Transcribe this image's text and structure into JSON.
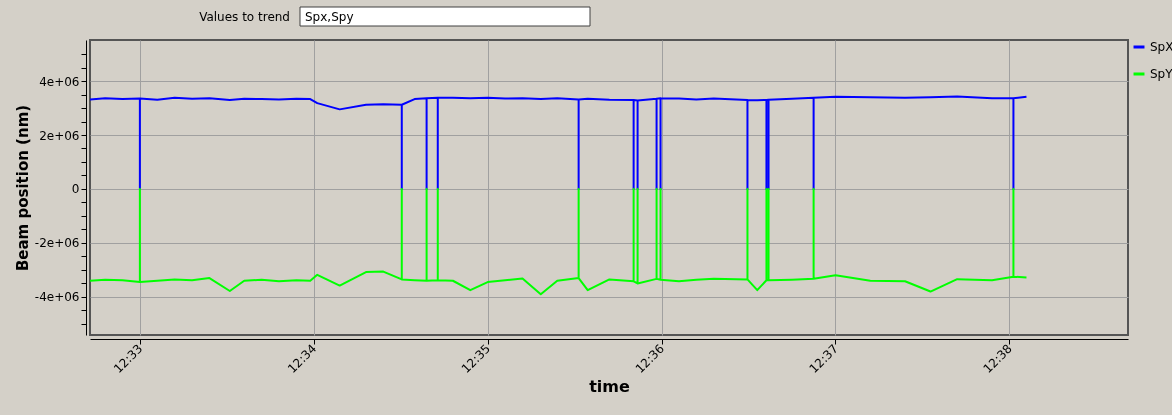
{
  "chart_data": {
    "type": "line",
    "annotations": [
      "Values to trend",
      "Spx,Spy"
    ],
    "xlabel": "time",
    "ylabel": "Beam position (nm)",
    "xlim": [
      12.54522,
      12.6447
    ],
    "ylim": [
      -5410000,
      5520000
    ],
    "xticks": [
      {
        "value": 12.55,
        "label": "12:33"
      },
      {
        "value": 12.566667,
        "label": "12:34"
      },
      {
        "value": 12.583333,
        "label": "12:35"
      },
      {
        "value": 12.6,
        "label": "12:36"
      },
      {
        "value": 12.616667,
        "label": "12:37"
      },
      {
        "value": 12.633333,
        "label": "12:38"
      }
    ],
    "yticks": [
      {
        "value": -5000000,
        "label": null
      },
      {
        "value": -4500000,
        "label": null
      },
      {
        "value": -4000000,
        "label": "-4e+06"
      },
      {
        "value": -3500000,
        "label": null
      },
      {
        "value": -3000000,
        "label": null
      },
      {
        "value": -2500000,
        "label": null
      },
      {
        "value": -2000000,
        "label": "-2e+06"
      },
      {
        "value": -1500000,
        "label": null
      },
      {
        "value": -1000000,
        "label": null
      },
      {
        "value": -500000,
        "label": null
      },
      0,
      {
        "value": 500000,
        "label": null
      },
      {
        "value": 1000000,
        "label": null
      },
      {
        "value": 1500000,
        "label": null
      },
      {
        "value": 2000000,
        "label": "2e+06"
      },
      {
        "value": 2500000,
        "label": null
      },
      {
        "value": 3000000,
        "label": null
      },
      {
        "value": 3500000,
        "label": null
      },
      {
        "value": 4000000,
        "label": "4e+06"
      },
      {
        "value": 4500000,
        "label": null
      },
      {
        "value": 5000000,
        "label": null
      }
    ],
    "grid": true,
    "legend": "top right",
    "marker": "none",
    "line_style": "solid",
    "x": [
      12.54522,
      12.54667,
      12.54833,
      12.55,
      12.55,
      12.55,
      12.55167,
      12.55333,
      12.555,
      12.55667,
      12.55862,
      12.56,
      12.56167,
      12.56333,
      12.565,
      12.56633,
      12.567,
      12.56915,
      12.57167,
      12.57333,
      12.5751,
      12.5751,
      12.5751,
      12.57633,
      12.57748,
      12.57748,
      12.57748,
      12.57855,
      12.57855,
      12.57855,
      12.58,
      12.58167,
      12.58333,
      12.585,
      12.58667,
      12.58842,
      12.59,
      12.59205,
      12.59205,
      12.59205,
      12.59292,
      12.595,
      12.59732,
      12.59732,
      12.59732,
      12.5977,
      12.5977,
      12.5977,
      12.59952,
      12.59952,
      12.59952,
      12.5999,
      12.5999,
      12.5999,
      12.60167,
      12.60333,
      12.605,
      12.60823,
      12.60823,
      12.60823,
      12.60917,
      12.61005,
      12.61005,
      12.61005,
      12.61025,
      12.61025,
      12.61025,
      12.6125,
      12.61457,
      12.61457,
      12.61457,
      12.61667,
      12.62,
      12.62333,
      12.62577,
      12.62833,
      12.63167,
      12.63372,
      12.63372,
      12.63372,
      12.63497
    ],
    "series": [
      {
        "name": "SpX",
        "color": "#0000ff",
        "values": [
          3320000,
          3360000,
          3330000,
          3350000,
          0,
          3350000,
          3310000,
          3380000,
          3340000,
          3360000,
          3300000,
          3340000,
          3330000,
          3320000,
          3340000,
          3330000,
          3180000,
          2950000,
          3120000,
          3140000,
          3120000,
          0,
          3120000,
          3330000,
          3360000,
          0,
          3360000,
          3380000,
          0,
          3380000,
          3380000,
          3360000,
          3380000,
          3350000,
          3360000,
          3330000,
          3360000,
          3320000,
          0,
          3320000,
          3340000,
          3310000,
          3300000,
          0,
          3300000,
          3280000,
          0,
          3280000,
          3340000,
          0,
          3340000,
          3360000,
          0,
          3360000,
          3350000,
          3320000,
          3350000,
          3300000,
          0,
          3300000,
          3290000,
          3300000,
          0,
          3300000,
          3310000,
          0,
          3310000,
          3340000,
          3380000,
          0,
          3380000,
          3420000,
          3400000,
          3380000,
          3400000,
          3430000,
          3360000,
          3360000,
          0,
          3360000,
          3420000
        ]
      },
      {
        "name": "SpY",
        "color": "#00ff00",
        "values": [
          -3400000,
          -3360000,
          -3380000,
          -3450000,
          0,
          -3450000,
          -3400000,
          -3350000,
          -3380000,
          -3300000,
          -3780000,
          -3400000,
          -3360000,
          -3420000,
          -3380000,
          -3400000,
          -3180000,
          -3580000,
          -3080000,
          -3060000,
          -3350000,
          0,
          -3350000,
          -3380000,
          -3400000,
          0,
          -3400000,
          -3380000,
          0,
          -3380000,
          -3400000,
          -3750000,
          -3450000,
          -3380000,
          -3320000,
          -3900000,
          -3400000,
          -3300000,
          0,
          -3300000,
          -3750000,
          -3350000,
          -3420000,
          0,
          -3420000,
          -3500000,
          0,
          -3500000,
          -3330000,
          0,
          -3330000,
          -3360000,
          0,
          -3360000,
          -3420000,
          -3360000,
          -3330000,
          -3350000,
          0,
          -3350000,
          -3750000,
          -3380000,
          0,
          -3380000,
          -3380000,
          0,
          -3380000,
          -3360000,
          -3330000,
          0,
          -3330000,
          -3200000,
          -3400000,
          -3420000,
          -3800000,
          -3340000,
          -3380000,
          -3250000,
          0,
          -3250000,
          -3280000
        ]
      }
    ]
  }
}
